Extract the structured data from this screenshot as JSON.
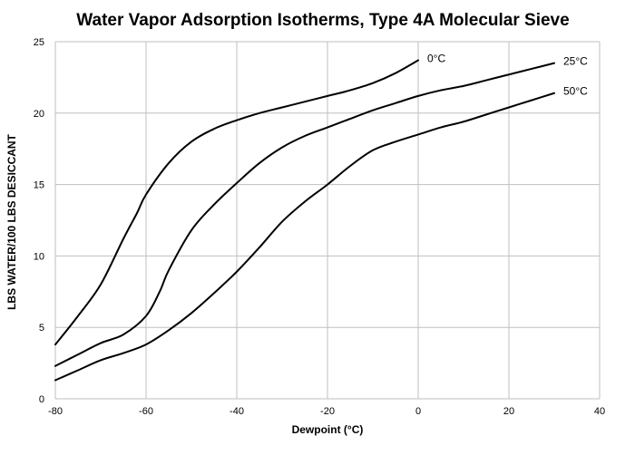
{
  "chart_data": {
    "type": "line",
    "title": "Water Vapor Adsorption Isotherms, Type 4A Molecular Sieve",
    "xlabel": "Dewpoint (°C)",
    "ylabel": "LBS WATER/100 LBS DESICCANT",
    "xlim": [
      -80,
      40
    ],
    "ylim": [
      0,
      25
    ],
    "x_ticks": [
      "-80",
      "-60",
      "-40",
      "-20",
      "0",
      "20",
      "40"
    ],
    "y_ticks": [
      "0",
      "5",
      "10",
      "15",
      "20",
      "25"
    ],
    "grid": true,
    "legend": "none",
    "series": [
      {
        "name": "0°C",
        "x": [
          -80,
          -75,
          -70,
          -65,
          -62,
          -60,
          -55,
          -50,
          -45,
          -40,
          -35,
          -30,
          -25,
          -20,
          -15,
          -10,
          -5,
          0
        ],
        "y": [
          3.8,
          5.8,
          8.0,
          11.2,
          13.0,
          14.3,
          16.5,
          18.0,
          18.9,
          19.5,
          20.0,
          20.4,
          20.8,
          21.2,
          21.6,
          22.1,
          22.8,
          23.7
        ]
      },
      {
        "name": "25°C",
        "x": [
          -80,
          -75,
          -70,
          -65,
          -60,
          -57,
          -55,
          -50,
          -45,
          -40,
          -35,
          -30,
          -25,
          -20,
          -15,
          -10,
          -5,
          0,
          5,
          10,
          15,
          20,
          25,
          30
        ],
        "y": [
          2.3,
          3.1,
          3.9,
          4.5,
          5.8,
          7.5,
          9.0,
          11.8,
          13.6,
          15.1,
          16.5,
          17.6,
          18.4,
          19.0,
          19.6,
          20.2,
          20.7,
          21.2,
          21.6,
          21.9,
          22.3,
          22.7,
          23.1,
          23.5
        ]
      },
      {
        "name": "50°C",
        "x": [
          -80,
          -75,
          -70,
          -65,
          -60,
          -55,
          -50,
          -45,
          -40,
          -35,
          -30,
          -25,
          -20,
          -15,
          -10,
          -5,
          0,
          5,
          10,
          15,
          20,
          25,
          30
        ],
        "y": [
          1.3,
          2.0,
          2.7,
          3.2,
          3.8,
          4.8,
          6.0,
          7.4,
          8.9,
          10.6,
          12.4,
          13.8,
          15.0,
          16.3,
          17.4,
          18.0,
          18.5,
          19.0,
          19.4,
          19.9,
          20.4,
          20.9,
          21.4
        ]
      }
    ]
  }
}
